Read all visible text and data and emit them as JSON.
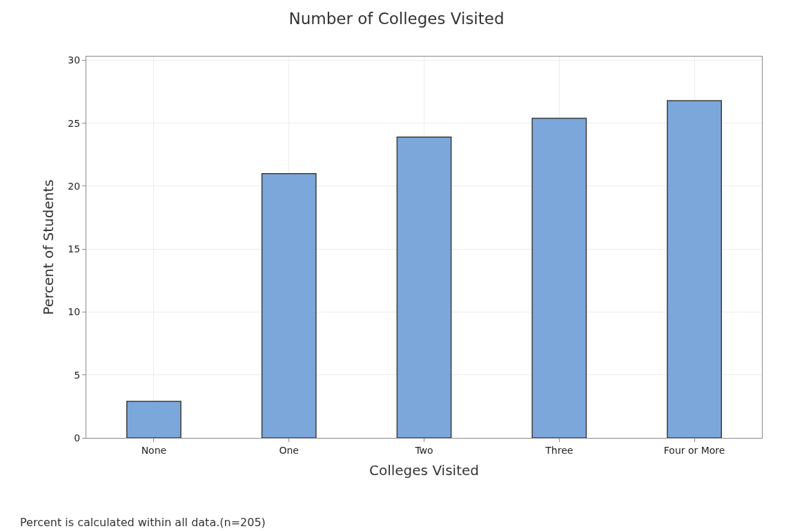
{
  "chart_data": {
    "type": "bar",
    "title": "Number of Colleges Visited",
    "xlabel": "Colleges Visited",
    "ylabel": "Percent of Students",
    "categories": [
      "None",
      "One",
      "Two",
      "Three",
      "Four or More"
    ],
    "values": [
      2.9,
      21.0,
      23.9,
      25.4,
      26.8
    ],
    "color": "#7ba7db",
    "ylim": [
      0,
      30.3
    ],
    "yticks": [
      0,
      5,
      10,
      15,
      20,
      25,
      30
    ],
    "grid": true,
    "annotations": [
      "Percent is calculated within all data.(n=205)"
    ]
  }
}
